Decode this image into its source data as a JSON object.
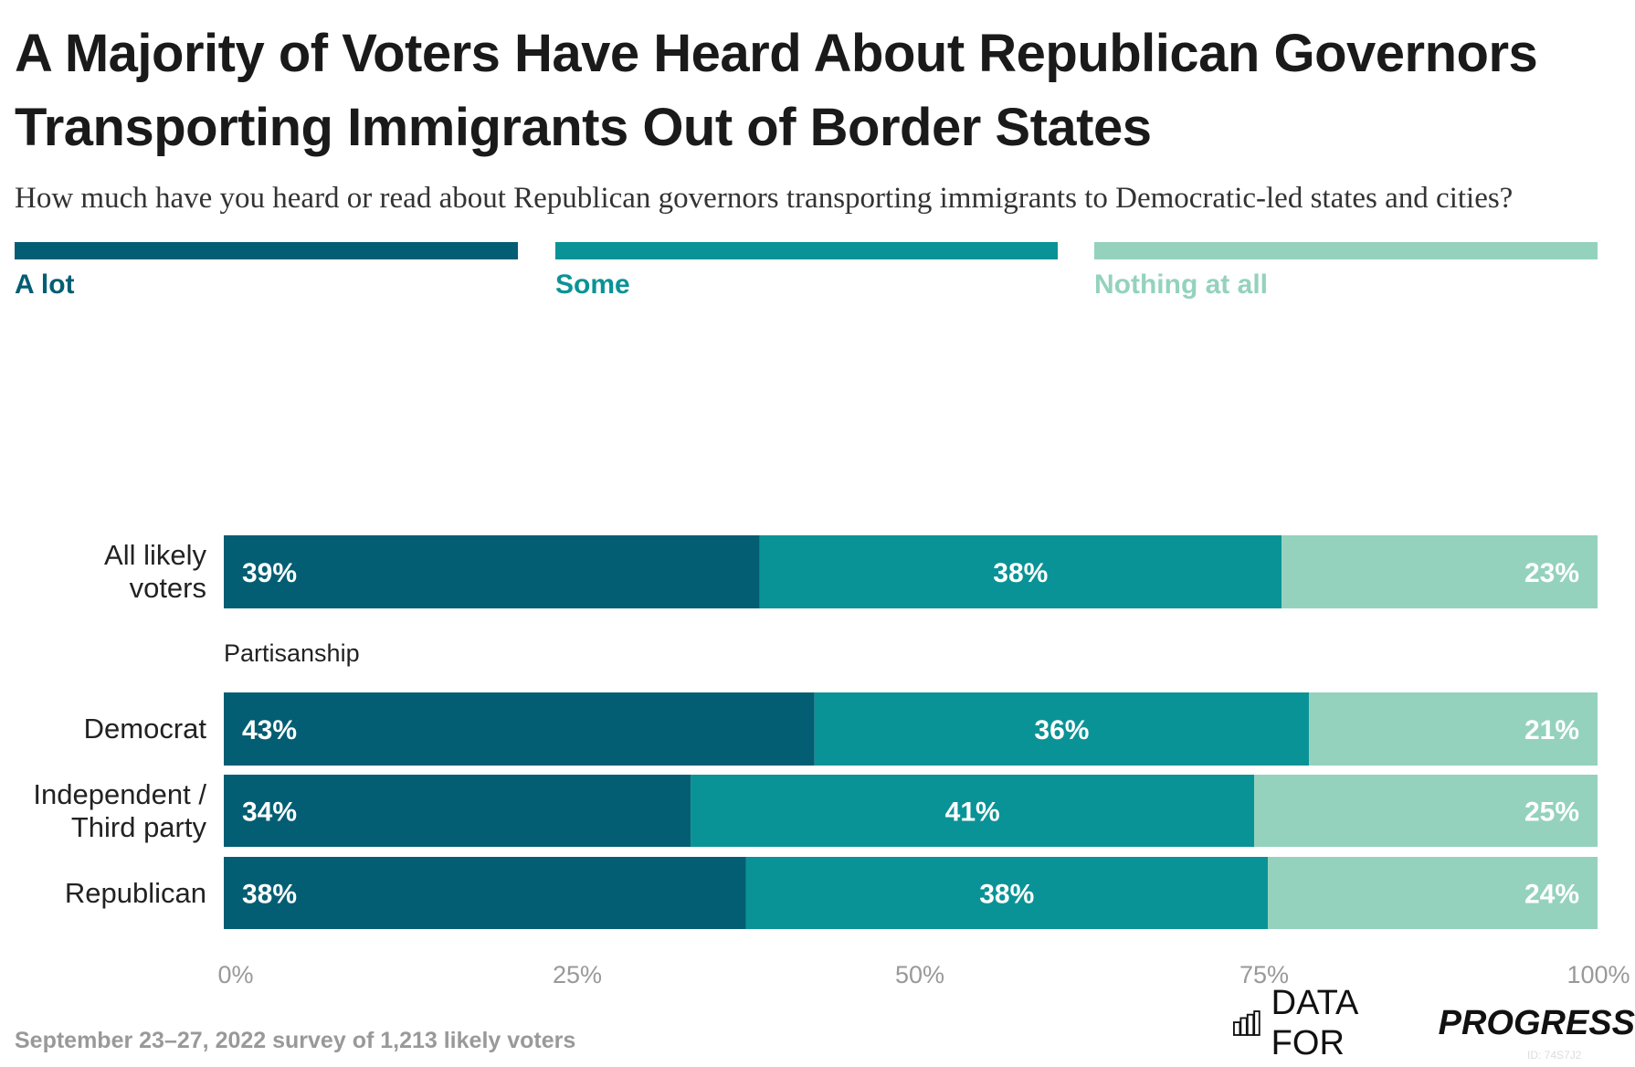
{
  "title": "A Majority of Voters Have Heard About Republican Governors Transporting Immigrants Out of Border States",
  "subtitle": "How much have you heard or read about Republican governors transporting immigrants to Democratic-led states and cities?",
  "footer": "September 23–27, 2022 survey of 1,213 likely voters",
  "logo": {
    "text_light": "DATA FOR",
    "text_bold": "PROGRESS",
    "icon": "bar-chart-icon"
  },
  "chart_id": "ID: 74S7J2",
  "colors": {
    "A lot": "#035e73",
    "Some": "#0a9396",
    "Nothing at all": "#94d2bd"
  },
  "chart_data": {
    "type": "bar",
    "orientation": "horizontal",
    "stacked": true,
    "legend_position": "top",
    "categories": [
      "All likely voters",
      "Democrat",
      "Independent / Third party",
      "Republican"
    ],
    "group_label": "Partisanship",
    "series": [
      {
        "name": "A lot",
        "values": [
          39,
          43,
          34,
          38
        ]
      },
      {
        "name": "Some",
        "values": [
          38,
          36,
          41,
          38
        ]
      },
      {
        "name": "Nothing at all",
        "values": [
          23,
          21,
          25,
          24
        ]
      }
    ],
    "xlim": [
      0,
      100
    ],
    "xticks": [
      "0%",
      "25%",
      "50%",
      "75%",
      "100%"
    ],
    "value_suffix": "%"
  }
}
